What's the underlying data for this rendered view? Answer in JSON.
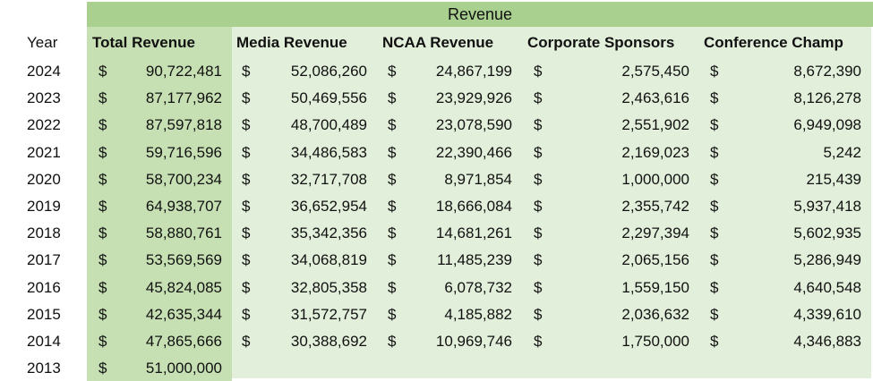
{
  "title": "Revenue",
  "headers": {
    "year": "Year",
    "total": "Total Revenue",
    "media": "Media Revenue",
    "ncaa": "NCAA Revenue",
    "corporate": "Corporate Sponsors",
    "conference": "Conference Champ"
  },
  "currency": "$",
  "rows": [
    {
      "year": "2024",
      "total": "90,722,481",
      "media": "52,086,260",
      "ncaa": "24,867,199",
      "corporate": "2,575,450",
      "conference": "8,672,390"
    },
    {
      "year": "2023",
      "total": "87,177,962",
      "media": "50,469,556",
      "ncaa": "23,929,926",
      "corporate": "2,463,616",
      "conference": "8,126,278"
    },
    {
      "year": "2022",
      "total": "87,597,818",
      "media": "48,700,489",
      "ncaa": "23,078,590",
      "corporate": "2,551,902",
      "conference": "6,949,098"
    },
    {
      "year": "2021",
      "total": "59,716,596",
      "media": "34,486,583",
      "ncaa": "22,390,466",
      "corporate": "2,169,023",
      "conference": "5,242"
    },
    {
      "year": "2020",
      "total": "58,700,234",
      "media": "32,717,708",
      "ncaa": "8,971,854",
      "corporate": "1,000,000",
      "conference": "215,439"
    },
    {
      "year": "2019",
      "total": "64,938,707",
      "media": "36,652,954",
      "ncaa": "18,666,084",
      "corporate": "2,355,742",
      "conference": "5,937,418"
    },
    {
      "year": "2018",
      "total": "58,880,761",
      "media": "35,342,356",
      "ncaa": "14,681,261",
      "corporate": "2,297,394",
      "conference": "5,602,935"
    },
    {
      "year": "2017",
      "total": "53,569,569",
      "media": "34,068,819",
      "ncaa": "11,485,239",
      "corporate": "2,065,156",
      "conference": "5,286,949"
    },
    {
      "year": "2016",
      "total": "45,824,085",
      "media": "32,805,358",
      "ncaa": "6,078,732",
      "corporate": "1,559,150",
      "conference": "4,640,548"
    },
    {
      "year": "2015",
      "total": "42,635,344",
      "media": "31,572,757",
      "ncaa": "4,185,882",
      "corporate": "2,036,632",
      "conference": "4,339,610"
    },
    {
      "year": "2014",
      "total": "47,865,666",
      "media": "30,388,692",
      "ncaa": "10,969,746",
      "corporate": "1,750,000",
      "conference": "4,346,883"
    },
    {
      "year": "2013",
      "total": "51,000,000"
    }
  ]
}
